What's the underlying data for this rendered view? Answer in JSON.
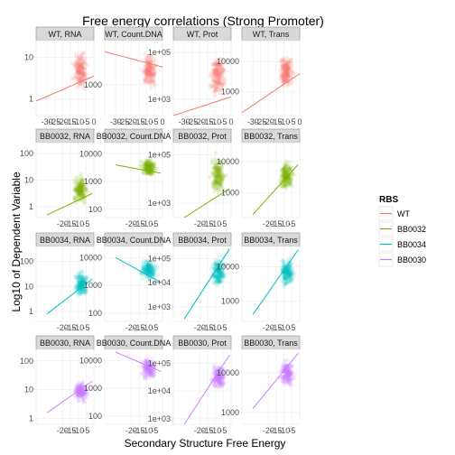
{
  "chart_data": {
    "type": "scatter",
    "title": "Free energy correlations (Strong Promoter)",
    "xlabel": "Secondary Structure Free Energy",
    "ylabel": "Log10 of Dependent Variable",
    "xlim": [
      -37,
      0
    ],
    "facet_rows": [
      "WT",
      "BB0032",
      "BB0034",
      "BB0030"
    ],
    "facet_cols": [
      "RNA",
      "Count.DNA",
      "Prot",
      "Trans"
    ],
    "x_ticks_top_row": [
      "-30",
      "-25",
      "-20",
      "-15",
      "-10",
      "-5",
      "0"
    ],
    "x_ticks_other_rows": [
      "-20",
      "-15",
      "-10",
      "-5"
    ],
    "legend": {
      "title": "RBS",
      "position": "right",
      "items": [
        {
          "name": "WT",
          "color": "#F8766D"
        },
        {
          "name": "BB0032",
          "color": "#7CAE00"
        },
        {
          "name": "BB0034",
          "color": "#00BFC4"
        },
        {
          "name": "BB0030",
          "color": "#C77CFF"
        }
      ]
    },
    "panels": [
      {
        "label": "WT, RNA",
        "row": 0,
        "col": 0,
        "ylim": [
          -0.4,
          1.4
        ],
        "y_ticks": [
          {
            "v": 0,
            "t": "1"
          },
          {
            "v": 1,
            "t": "10"
          }
        ],
        "fit": [
          [
            -37,
            -0.05
          ],
          [
            0,
            0.55
          ]
        ],
        "cloud": {
          "x": [
            -15,
            -2
          ],
          "y": [
            0.0,
            1.35
          ]
        }
      },
      {
        "label": "WT, Count.DNA",
        "row": 0,
        "col": 1,
        "ylim": [
          2.3,
          4.0
        ],
        "y_ticks": [
          {
            "v": 3,
            "t": "1000"
          }
        ],
        "fit": [
          [
            -37,
            3.75
          ],
          [
            0,
            3.4
          ]
        ],
        "cloud": {
          "x": [
            -15,
            -2
          ],
          "y": [
            2.7,
            3.9
          ]
        }
      },
      {
        "label": "WT, Prot",
        "row": 0,
        "col": 2,
        "ylim": [
          2.3,
          5.5
        ],
        "y_ticks": [
          {
            "v": 3,
            "t": "1e+03"
          },
          {
            "v": 5,
            "t": "1e+05"
          }
        ],
        "fit": [
          [
            -37,
            2.3
          ],
          [
            0,
            3.1
          ]
        ],
        "cloud": {
          "x": [
            -15,
            -2
          ],
          "y": [
            2.6,
            5.4
          ]
        }
      },
      {
        "label": "WT, Trans",
        "row": 0,
        "col": 3,
        "ylim": [
          2.2,
          4.7
        ],
        "y_ticks": [
          {
            "v": 3,
            "t": "1000"
          },
          {
            "v": 4,
            "t": "10000"
          }
        ],
        "fit": [
          [
            -37,
            2.3
          ],
          [
            0,
            3.6
          ]
        ],
        "cloud": {
          "x": [
            -15,
            -2
          ],
          "y": [
            2.7,
            4.6
          ]
        }
      },
      {
        "label": "BB0032, RNA",
        "row": 1,
        "col": 0,
        "ylim": [
          -0.4,
          2.4
        ],
        "y_ticks": [
          {
            "v": 0,
            "t": "1"
          },
          {
            "v": 1,
            "t": "10"
          },
          {
            "v": 2,
            "t": "100"
          }
        ],
        "fit": [
          [
            -30,
            -0.3
          ],
          [
            -1,
            0.5
          ]
        ],
        "cloud": {
          "x": [
            -15,
            -2
          ],
          "y": [
            -0.1,
            1.4
          ]
        }
      },
      {
        "label": "BB0032, Count.DNA",
        "row": 1,
        "col": 1,
        "ylim": [
          1.7,
          4.4
        ],
        "y_ticks": [
          {
            "v": 2,
            "t": "100"
          },
          {
            "v": 3,
            "t": "1000"
          },
          {
            "v": 4,
            "t": "10000"
          }
        ],
        "fit": [
          [
            -30,
            3.6
          ],
          [
            -1,
            3.3
          ]
        ],
        "cloud": {
          "x": [
            -16,
            -2
          ],
          "y": [
            3.0,
            4.0
          ]
        }
      },
      {
        "label": "BB0032, Prot",
        "row": 1,
        "col": 2,
        "ylim": [
          2.4,
          5.5
        ],
        "y_ticks": [
          {
            "v": 3,
            "t": "1e+03"
          },
          {
            "v": 5,
            "t": "1e+05"
          }
        ],
        "fit": [
          [
            -30,
            2.4
          ],
          [
            -1,
            3.6
          ]
        ],
        "cloud": {
          "x": [
            -15,
            -2
          ],
          "y": [
            2.9,
            5.4
          ]
        }
      },
      {
        "label": "BB0032, Trans",
        "row": 1,
        "col": 3,
        "ylim": [
          2.2,
          4.6
        ],
        "y_ticks": [
          {
            "v": 3,
            "t": "1000"
          },
          {
            "v": 4,
            "t": "10000"
          }
        ],
        "fit": [
          [
            -30,
            2.3
          ],
          [
            -1,
            3.9
          ]
        ],
        "cloud": {
          "x": [
            -15,
            -2
          ],
          "y": [
            2.8,
            4.3
          ]
        }
      },
      {
        "label": "BB0034, RNA",
        "row": 2,
        "col": 0,
        "ylim": [
          -0.4,
          2.6
        ],
        "y_ticks": [
          {
            "v": 0,
            "t": "1"
          },
          {
            "v": 1,
            "t": "10"
          },
          {
            "v": 2,
            "t": "100"
          }
        ],
        "fit": [
          [
            -30,
            -0.1
          ],
          [
            -1,
            1.3
          ]
        ],
        "cloud": {
          "x": [
            -14,
            -2
          ],
          "y": [
            0.3,
            1.9
          ]
        }
      },
      {
        "label": "BB0034, Count.DNA",
        "row": 2,
        "col": 1,
        "ylim": [
          1.7,
          4.4
        ],
        "y_ticks": [
          {
            "v": 2,
            "t": "100"
          },
          {
            "v": 3,
            "t": "1000"
          },
          {
            "v": 4,
            "t": "10000"
          }
        ],
        "fit": [
          [
            -30,
            4.0
          ],
          [
            -1,
            3.1
          ]
        ],
        "cloud": {
          "x": [
            -16,
            -2
          ],
          "y": [
            3.0,
            4.1
          ]
        }
      },
      {
        "label": "BB0034, Prot",
        "row": 2,
        "col": 2,
        "ylim": [
          2.4,
          5.5
        ],
        "y_ticks": [
          {
            "v": 3,
            "t": "1e+03"
          },
          {
            "v": 4,
            "t": "1e+04"
          },
          {
            "v": 5,
            "t": "1e+05"
          }
        ],
        "fit": [
          [
            -30,
            2.5
          ],
          [
            -1,
            5.4
          ]
        ],
        "cloud": {
          "x": [
            -14,
            -2
          ],
          "y": [
            3.5,
            5.4
          ]
        }
      },
      {
        "label": "BB0034, Trans",
        "row": 2,
        "col": 3,
        "ylim": [
          2.4,
          4.6
        ],
        "y_ticks": [
          {
            "v": 3,
            "t": "1000"
          },
          {
            "v": 4,
            "t": "10000"
          }
        ],
        "fit": [
          [
            -30,
            2.6
          ],
          [
            -1,
            4.5
          ]
        ],
        "cloud": {
          "x": [
            -14,
            -2
          ],
          "y": [
            3.2,
            4.5
          ]
        }
      },
      {
        "label": "BB0030, RNA",
        "row": 3,
        "col": 0,
        "ylim": [
          -0.2,
          2.4
        ],
        "y_ticks": [
          {
            "v": 0,
            "t": "1"
          },
          {
            "v": 1,
            "t": "10"
          },
          {
            "v": 2,
            "t": "100"
          }
        ],
        "fit": [
          [
            -30,
            0.2
          ],
          [
            -1,
            1.3
          ]
        ],
        "cloud": {
          "x": [
            -14,
            -2
          ],
          "y": [
            0.4,
            1.5
          ]
        }
      },
      {
        "label": "BB0030, Count.DNA",
        "row": 3,
        "col": 1,
        "ylim": [
          1.7,
          4.4
        ],
        "y_ticks": [
          {
            "v": 2,
            "t": "100"
          },
          {
            "v": 3,
            "t": "1000"
          },
          {
            "v": 4,
            "t": "10000"
          }
        ],
        "fit": [
          [
            -30,
            4.3
          ],
          [
            -1,
            3.6
          ]
        ],
        "cloud": {
          "x": [
            -16,
            -2
          ],
          "y": [
            3.1,
            4.3
          ]
        }
      },
      {
        "label": "BB0030, Prot",
        "row": 3,
        "col": 2,
        "ylim": [
          2.8,
          5.5
        ],
        "y_ticks": [
          {
            "v": 3,
            "t": "1e+03"
          },
          {
            "v": 4,
            "t": "1e+04"
          },
          {
            "v": 5,
            "t": "1e+05"
          }
        ],
        "fit": [
          [
            -30,
            2.8
          ],
          [
            -1,
            5.3
          ]
        ],
        "cloud": {
          "x": [
            -14,
            -2
          ],
          "y": [
            3.8,
            5.2
          ]
        }
      },
      {
        "label": "BB0030, Trans",
        "row": 3,
        "col": 3,
        "ylim": [
          2.7,
          4.6
        ],
        "y_ticks": [
          {
            "v": 3,
            "t": "1000"
          },
          {
            "v": 4,
            "t": "10000"
          }
        ],
        "fit": [
          [
            -30,
            3.1
          ],
          [
            -1,
            4.5
          ]
        ],
        "cloud": {
          "x": [
            -14,
            -2
          ],
          "y": [
            3.5,
            4.5
          ]
        }
      }
    ]
  }
}
